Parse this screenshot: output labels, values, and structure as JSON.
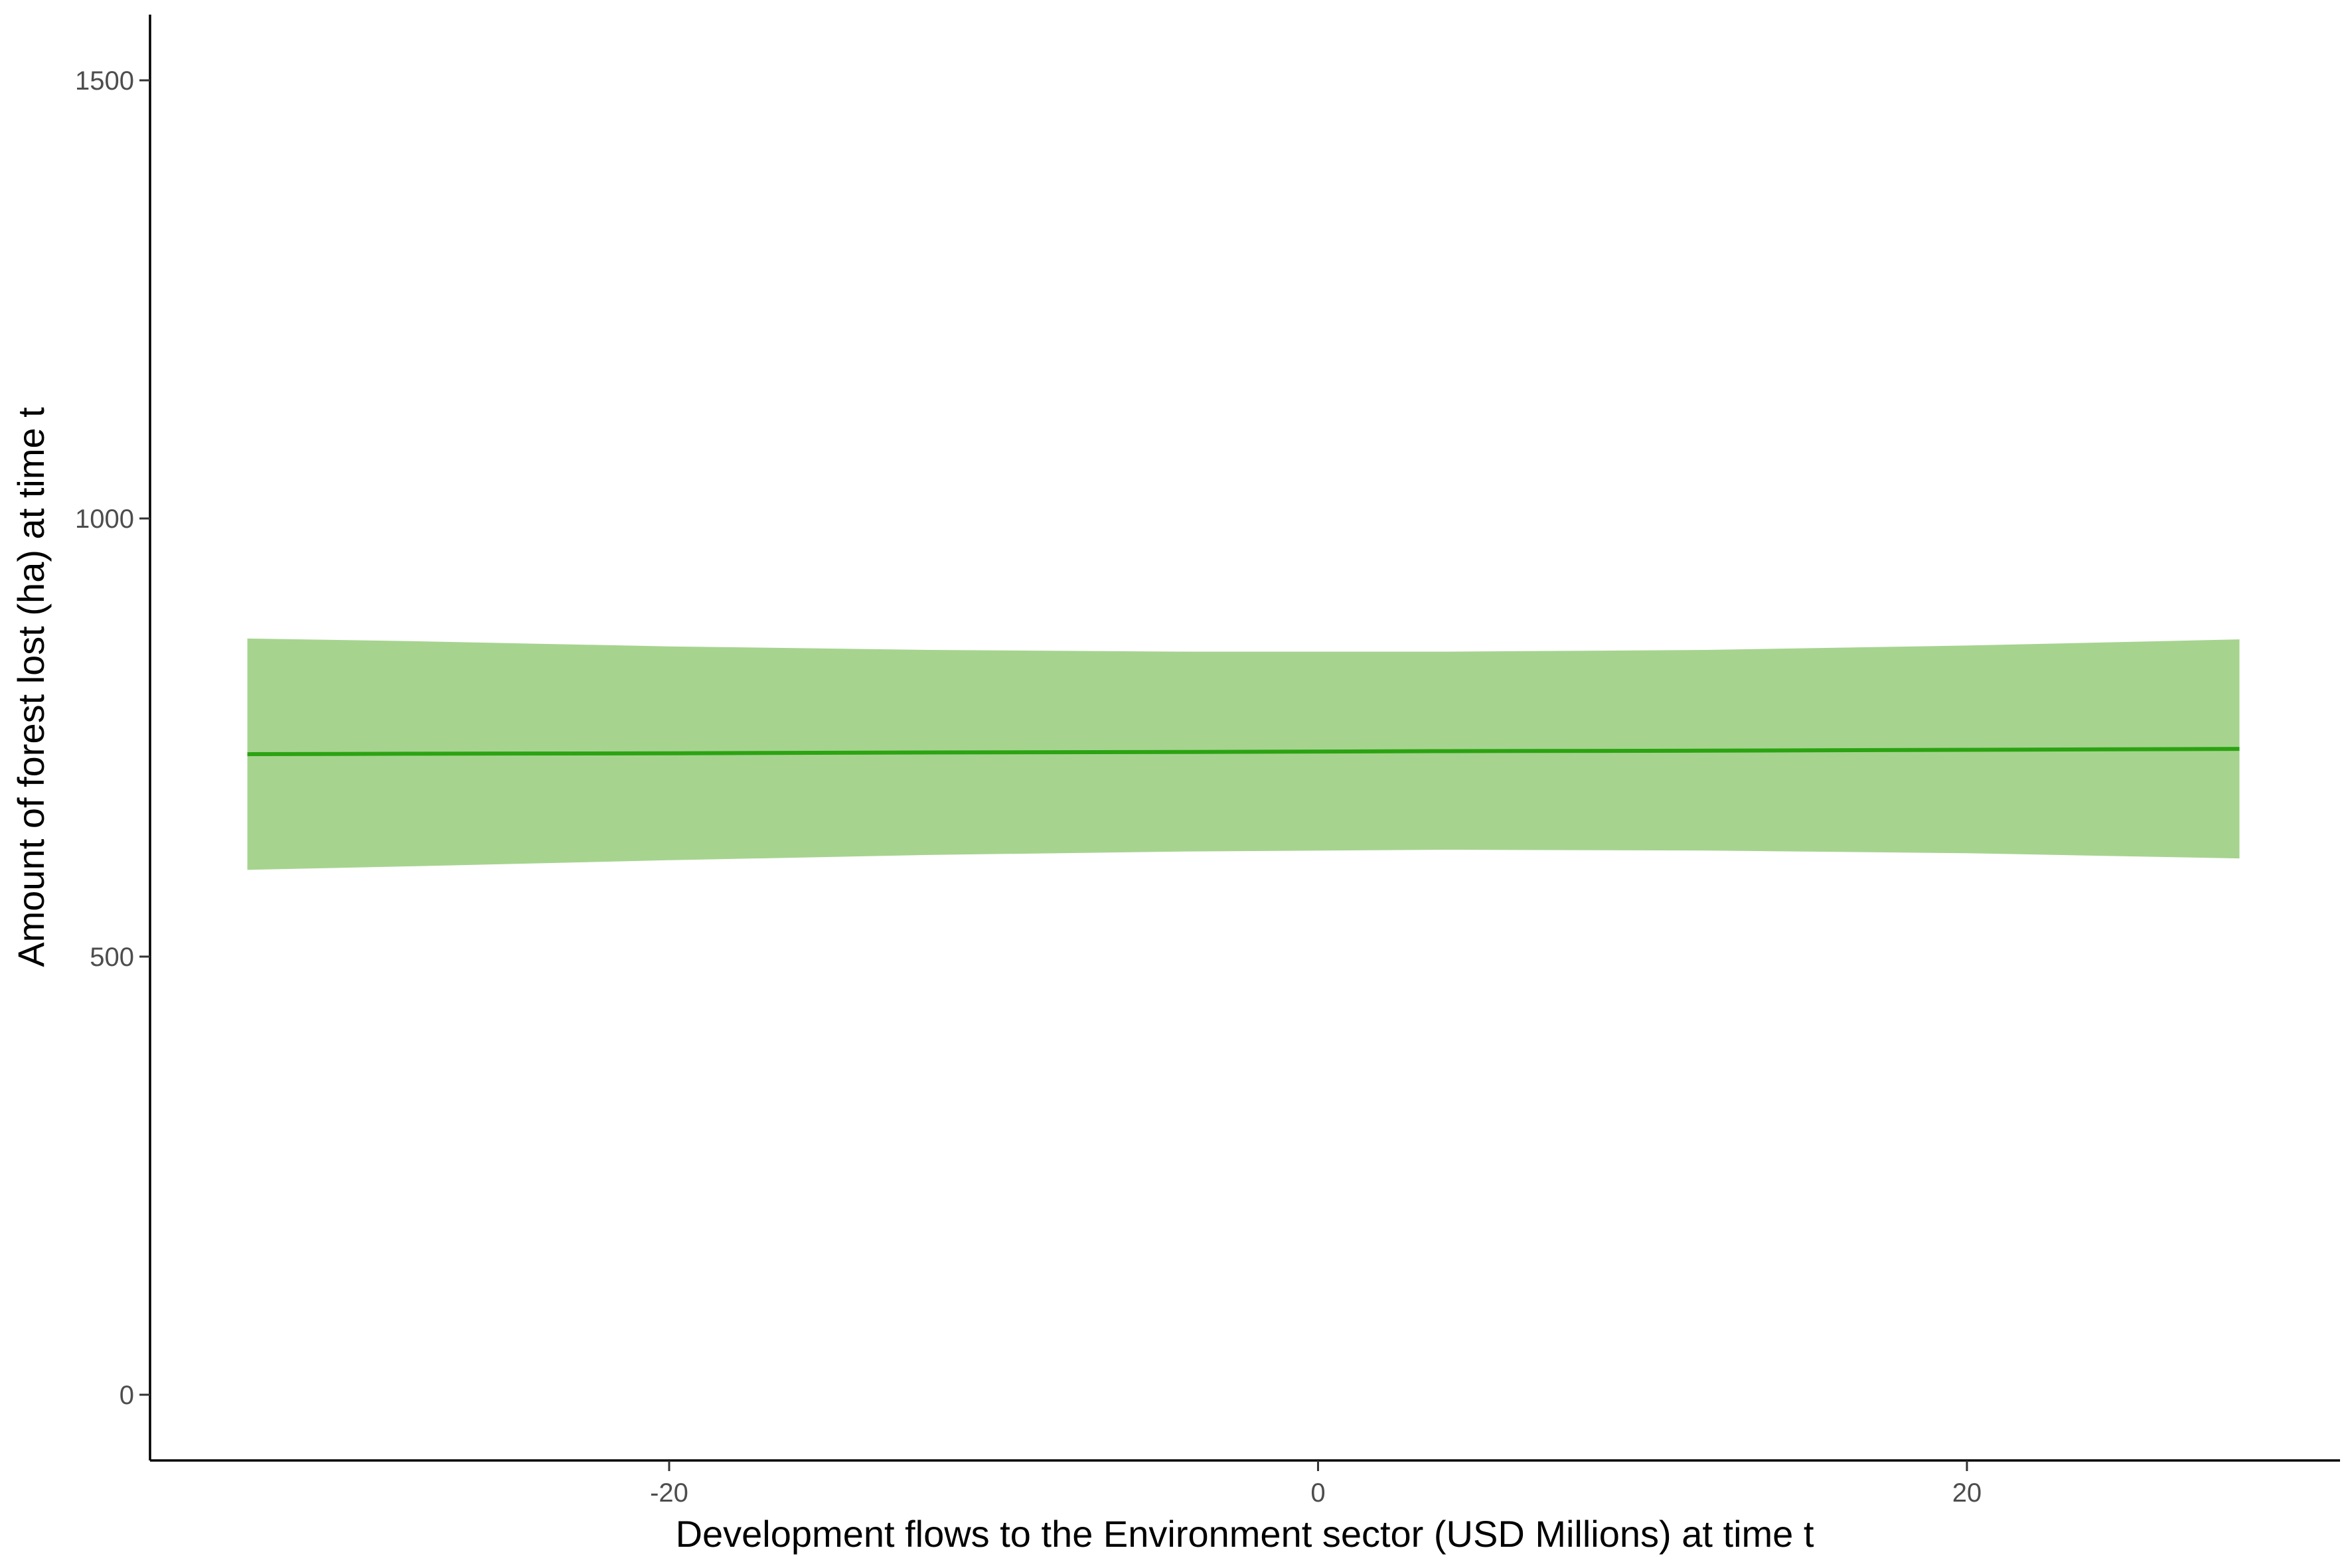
{
  "chart_data": {
    "type": "line",
    "title": "",
    "xlabel": "Development flows to the Environment sector (USD Millions) at time t",
    "ylabel": "Amount of forest lost (ha) at time t",
    "xlim": [
      -36,
      31.5
    ],
    "ylim": [
      -75,
      1575
    ],
    "x_ticks": [
      -20,
      0,
      20
    ],
    "x_tick_labels": [
      "-20",
      "0",
      "20"
    ],
    "y_ticks": [
      0,
      500,
      1000,
      1500
    ],
    "y_tick_labels": [
      "0",
      "500",
      "1000",
      "1500"
    ],
    "grid": false,
    "legend": "none",
    "colors": {
      "line": "#2ca312",
      "ribbon": "#a6d48f"
    },
    "series": [
      {
        "x": [
          -33,
          -28,
          -20,
          -12,
          -4,
          4,
          12,
          20,
          28.4
        ],
        "fit": [
          731,
          731.5,
          732,
          733,
          733.5,
          734.5,
          735,
          736,
          737
        ],
        "lower": [
          599,
          603,
          610,
          616,
          620,
          622,
          621,
          618,
          612
        ],
        "upper": [
          863,
          860,
          854,
          850,
          848,
          848,
          850,
          855,
          862
        ]
      }
    ]
  }
}
